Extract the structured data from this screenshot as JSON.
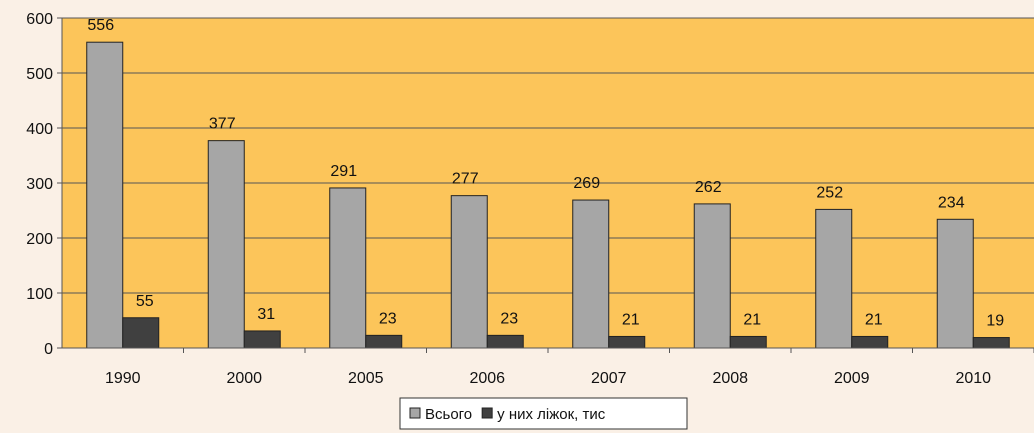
{
  "chart_data": {
    "type": "bar",
    "categories": [
      "1990",
      "2000",
      "2005",
      "2006",
      "2007",
      "2008",
      "2009",
      "2010"
    ],
    "series": [
      {
        "name": "Всього",
        "values": [
          556,
          377,
          291,
          277,
          269,
          262,
          252,
          234
        ],
        "color": "#a6a6a6"
      },
      {
        "name": "у них ліжок, тис",
        "values": [
          55,
          31,
          23,
          23,
          21,
          21,
          21,
          19
        ],
        "color": "#404040"
      }
    ],
    "ylim": [
      0,
      600
    ],
    "yticks": [
      0,
      100,
      200,
      300,
      400,
      500,
      600
    ],
    "grid": true,
    "legend_position": "bottom-center",
    "plot_background": "#fcc55a",
    "page_background": "#faf0e6"
  }
}
